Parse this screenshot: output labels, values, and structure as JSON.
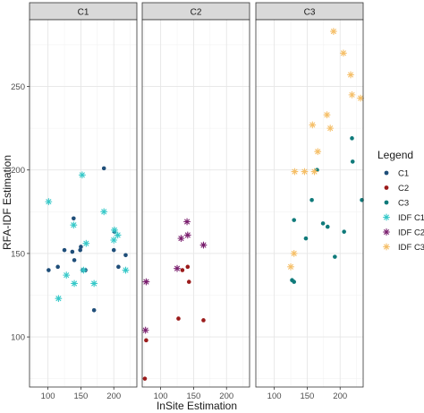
{
  "chart_data": {
    "type": "scatter",
    "xlabel": "InSite Estimation",
    "ylabel": "RFA-IDF Estimation",
    "xlim": [
      72,
      235
    ],
    "ylim": [
      70,
      290
    ],
    "x_ticks": [
      100,
      150,
      200
    ],
    "y_ticks": [
      100,
      150,
      200,
      250
    ],
    "grid": true,
    "legend": {
      "title": "Legend",
      "placement": "right",
      "entries": [
        {
          "label": "C1",
          "marker": "dot",
          "color": "#1f4e79"
        },
        {
          "label": "C2",
          "marker": "dot",
          "color": "#9b1b1b"
        },
        {
          "label": "C3",
          "marker": "dot",
          "color": "#0f7a7a"
        },
        {
          "label": "IDF C1",
          "marker": "asterisk",
          "color": "#35c8c8"
        },
        {
          "label": "IDF C2",
          "marker": "asterisk",
          "color": "#7a1f6e"
        },
        {
          "label": "IDF C3",
          "marker": "asterisk",
          "color": "#f5bf68"
        }
      ]
    },
    "panels": [
      {
        "label": "C1",
        "series": [
          {
            "name": "C1",
            "marker": "dot",
            "color": "#1f4e79",
            "points": [
              [
                101,
                140
              ],
              [
                115,
                142
              ],
              [
                125,
                152
              ],
              [
                137,
                151
              ],
              [
                139,
                171
              ],
              [
                140,
                146
              ],
              [
                149,
                152
              ],
              [
                150,
                154
              ],
              [
                153,
                140
              ],
              [
                157,
                140
              ],
              [
                170,
                116
              ],
              [
                185,
                201
              ],
              [
                200,
                152
              ],
              [
                201,
                163
              ],
              [
                207,
                142
              ],
              [
                218,
                149
              ]
            ]
          },
          {
            "name": "IDF C1",
            "marker": "asterisk",
            "color": "#35c8c8",
            "points": [
              [
                101,
                181
              ],
              [
                116,
                123
              ],
              [
                128,
                137
              ],
              [
                139,
                167
              ],
              [
                140,
                132
              ],
              [
                152,
                197
              ],
              [
                154,
                140
              ],
              [
                158,
                156
              ],
              [
                170,
                132
              ],
              [
                185,
                175
              ],
              [
                200,
                158
              ],
              [
                201,
                164
              ],
              [
                206,
                161
              ],
              [
                218,
                140
              ]
            ]
          }
        ]
      },
      {
        "label": "C2",
        "series": [
          {
            "name": "C2",
            "marker": "dot",
            "color": "#9b1b1b",
            "points": [
              [
                76,
                75
              ],
              [
                78,
                98
              ],
              [
                127,
                111
              ],
              [
                133,
                140
              ],
              [
                141,
                142
              ],
              [
                143,
                133
              ],
              [
                165,
                110
              ]
            ]
          },
          {
            "name": "IDF C2",
            "marker": "asterisk",
            "color": "#7a1f6e",
            "points": [
              [
                77,
                104
              ],
              [
                78,
                133
              ],
              [
                125,
                141
              ],
              [
                131,
                159
              ],
              [
                140,
                169
              ],
              [
                141,
                161
              ],
              [
                165,
                155
              ]
            ]
          }
        ]
      },
      {
        "label": "C3",
        "series": [
          {
            "name": "C3",
            "marker": "dot",
            "color": "#0f7a7a",
            "points": [
              [
                127,
                134
              ],
              [
                130,
                133
              ],
              [
                130,
                170
              ],
              [
                148,
                159
              ],
              [
                157,
                182
              ],
              [
                165,
                200
              ],
              [
                174,
                168
              ],
              [
                181,
                166
              ],
              [
                192,
                148
              ],
              [
                206,
                163
              ],
              [
                218,
                219
              ],
              [
                219,
                205
              ],
              [
                233,
                182
              ]
            ]
          },
          {
            "name": "IDF C3",
            "marker": "asterisk",
            "color": "#f5bf68",
            "points": [
              [
                125,
                142
              ],
              [
                130,
                150
              ],
              [
                131,
                199
              ],
              [
                146,
                199
              ],
              [
                158,
                227
              ],
              [
                161,
                199
              ],
              [
                166,
                211
              ],
              [
                180,
                233
              ],
              [
                185,
                225
              ],
              [
                190,
                283
              ],
              [
                205,
                270
              ],
              [
                216,
                257
              ],
              [
                218,
                245
              ],
              [
                231,
                243
              ]
            ]
          }
        ]
      }
    ]
  }
}
